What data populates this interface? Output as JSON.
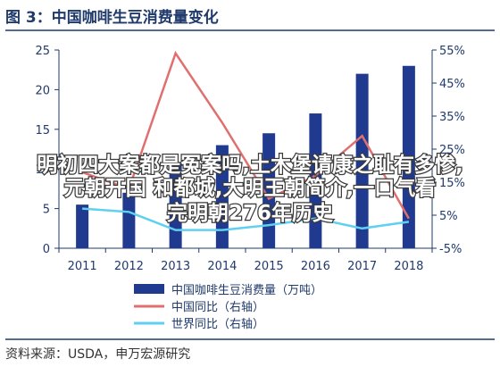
{
  "title": "图 3：中国咖啡生豆消费量变化",
  "source": "资料来源：USDA，申万宏源研究",
  "overlay_text": "明初四大案都是冤案吗,土木堡请康之耻有多惨,元朝开国 和都城,大明王朝简介,一口气看完明朝276年历史",
  "colors": {
    "title": "#1f3a6b",
    "bar": "#1f3a8f",
    "china_yoy": "#e07070",
    "world_yoy": "#5fd0f0",
    "axis": "#1f3a6b",
    "overlay_text": "#ffffff",
    "overlay_stroke": "#3a3a3a"
  },
  "chart_data": {
    "type": "bar",
    "categories": [
      "2011",
      "2012",
      "2013",
      "2014",
      "2015",
      "2016",
      "2017",
      "2018"
    ],
    "y_left": {
      "min": 0,
      "max": 25,
      "ticks": [
        "0",
        "5",
        "10",
        "15",
        "20",
        "25"
      ]
    },
    "y_right": {
      "min": -5,
      "max": 55,
      "ticks": [
        "-5%",
        "5%",
        "15%",
        "25%",
        "35%",
        "45%",
        "55%"
      ]
    },
    "series": [
      {
        "name": "中国咖啡生豆消费量（万吨）",
        "type": "bar",
        "axis": "left",
        "values": [
          5.5,
          7.0,
          10.8,
          13.0,
          14.5,
          17.0,
          22.0,
          23.0
        ]
      },
      {
        "name": "中国同比（右轴）",
        "type": "line",
        "axis": "right",
        "values": [
          18.0,
          13.0,
          54.0,
          33.0,
          10.0,
          17.0,
          29.0,
          4.0
        ]
      },
      {
        "name": "世界同比（右轴）",
        "type": "line",
        "axis": "right",
        "values": [
          7.0,
          6.0,
          0.5,
          0.5,
          2.0,
          4.0,
          1.0,
          3.0
        ]
      }
    ],
    "legend": [
      "中国咖啡生豆消费量（万吨）",
      "中国同比（右轴）",
      "世界同比（右轴）"
    ],
    "legend_position": "bottom"
  }
}
